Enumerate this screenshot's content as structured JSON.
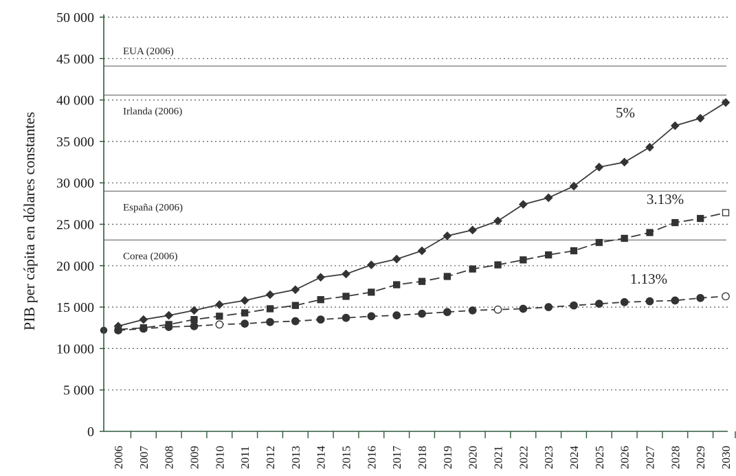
{
  "chart_data": {
    "type": "line",
    "ylabel": "PIB per cápita en dólares constantes",
    "xlabel": "",
    "ylim": [
      0,
      50000
    ],
    "yticks": [
      0,
      5000,
      10000,
      15000,
      20000,
      25000,
      30000,
      35000,
      40000,
      45000,
      50000
    ],
    "ytick_labels": [
      "0",
      "5 000",
      "10 000",
      "15 000",
      "20 000",
      "25 000",
      "30 000",
      "35 000",
      "40 000",
      "45 000",
      "50 000"
    ],
    "x": [
      "2006",
      "2007",
      "2008",
      "2009",
      "2010",
      "2011",
      "2012",
      "2013",
      "2014",
      "2015",
      "2016",
      "2017",
      "2018",
      "2019",
      "2020",
      "2021",
      "2022",
      "2023",
      "2024",
      "2025",
      "2026",
      "2027",
      "2028",
      "2029",
      "2030"
    ],
    "grid": "horizontal dotted",
    "reference_lines": [
      {
        "label": "EUA (2006)",
        "value": 44100
      },
      {
        "label": "Irlanda (2006)",
        "value": 40600
      },
      {
        "label": "España (2006)",
        "value": 29000
      },
      {
        "label": "Corea (2006)",
        "value": 23100
      }
    ],
    "series": [
      {
        "name": "5%",
        "style": "solid",
        "marker": "diamond",
        "values": [
          12700,
          13500,
          14000,
          14600,
          15300,
          15800,
          16500,
          17100,
          18600,
          19000,
          20100,
          20800,
          21800,
          23600,
          24300,
          25400,
          27400,
          28200,
          29600,
          31900,
          32500,
          34300,
          36900,
          37800,
          39700
        ]
      },
      {
        "name": "3.13%",
        "style": "dashed",
        "marker": "square",
        "values": [
          12300,
          12500,
          12900,
          13500,
          13900,
          14300,
          14800,
          15200,
          15900,
          16300,
          16800,
          17700,
          18100,
          18700,
          19600,
          20100,
          20700,
          21300,
          21800,
          22800,
          23300,
          24000,
          25200,
          25700,
          26400
        ]
      },
      {
        "name": "1.13%",
        "style": "dashed",
        "marker": "circle",
        "values": [
          12200,
          12400,
          12600,
          12700,
          12900,
          13000,
          13200,
          13300,
          13500,
          13700,
          13900,
          14000,
          14200,
          14400,
          14600,
          14700,
          14800,
          15000,
          15200,
          15400,
          15600,
          15700,
          15800,
          16100,
          16300
        ]
      }
    ],
    "colors": {
      "axis": "#2e5a3c",
      "line": "#3a3a3a",
      "grid": "#555555"
    }
  }
}
